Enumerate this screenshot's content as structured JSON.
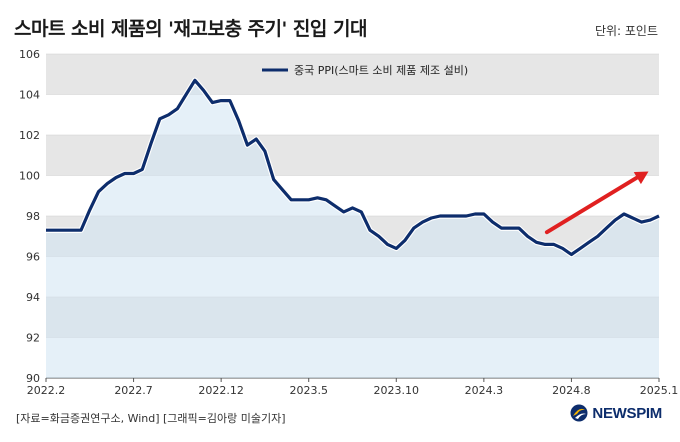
{
  "title": "스마트 소비 제품의 '재고보충 주기' 진입 기대",
  "unit": "단위: 포인트",
  "source": "[자료=화금증권연구소, Wind] [그래픽=김아랑 미술기자]",
  "logo": {
    "text": "NEWSPIM"
  },
  "chart_data": {
    "type": "line",
    "title": "스마트 소비 제품의 '재고보충 주기' 진입 기대",
    "ylabel": "",
    "xlabel": "",
    "ylim": [
      90,
      106
    ],
    "yticks": [
      90,
      92,
      94,
      96,
      98,
      100,
      102,
      104,
      106
    ],
    "xlim": [
      0,
      35
    ],
    "xticks": [
      {
        "x": 0,
        "label": "2022.2"
      },
      {
        "x": 5,
        "label": "2022.7"
      },
      {
        "x": 10,
        "label": "2022.12"
      },
      {
        "x": 15,
        "label": "2023.5"
      },
      {
        "x": 20,
        "label": "2023.10"
      },
      {
        "x": 25,
        "label": "2024.3"
      },
      {
        "x": 30,
        "label": "2024.8"
      },
      {
        "x": 35,
        "label": "2025.1"
      }
    ],
    "legend_position": "top-center",
    "bands": true,
    "series": [
      {
        "name": "중국 PPI(스마트 소비 제품 제조 설비)",
        "color": "#0d2d6c",
        "x": [
          0,
          0.5,
          1,
          1.5,
          2,
          2.5,
          3,
          3.5,
          4,
          4.5,
          5,
          5.5,
          6,
          6.5,
          7,
          7.5,
          8,
          8.5,
          9,
          9.5,
          10,
          10.5,
          11,
          11.5,
          12,
          12.5,
          13,
          13.5,
          14,
          14.5,
          15,
          15.5,
          16,
          16.5,
          17,
          17.5,
          18,
          18.5,
          19,
          19.5,
          20,
          20.5,
          21,
          21.5,
          22,
          22.5,
          23,
          23.5,
          24,
          24.5,
          25,
          25.5,
          26,
          26.5,
          27,
          27.5,
          28,
          28.5,
          29,
          29.5,
          30,
          30.5,
          31,
          31.5,
          32,
          32.5,
          33,
          33.5,
          34,
          34.5,
          35
        ],
        "values": [
          97.3,
          97.3,
          97.3,
          97.3,
          97.3,
          98.3,
          99.2,
          99.6,
          99.9,
          100.1,
          100.1,
          100.3,
          101.6,
          102.8,
          103.0,
          103.3,
          104.0,
          104.7,
          104.2,
          103.6,
          103.7,
          103.7,
          102.7,
          101.5,
          101.8,
          101.2,
          99.8,
          99.3,
          98.8,
          98.8,
          98.8,
          98.9,
          98.8,
          98.5,
          98.2,
          98.4,
          98.2,
          97.3,
          97.0,
          96.6,
          96.4,
          96.8,
          97.4,
          97.7,
          97.9,
          98.0,
          98.0,
          98.0,
          98.0,
          98.1,
          98.1,
          97.7,
          97.4,
          97.4,
          97.4,
          97.0,
          96.7,
          96.6,
          96.6,
          96.4,
          96.1,
          96.4,
          96.7,
          97.0,
          97.4,
          97.8,
          98.1,
          97.9,
          97.7,
          97.8,
          98.0
        ]
      }
    ],
    "annotation": {
      "type": "arrow",
      "color": "#e02020",
      "direction": "up-right"
    }
  }
}
